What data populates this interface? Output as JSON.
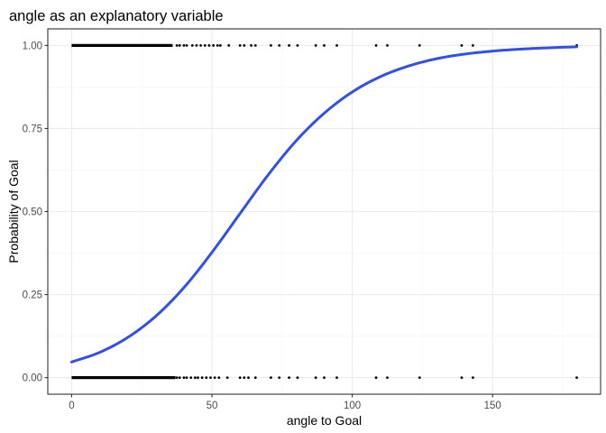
{
  "chart_data": {
    "type": "scatter",
    "title": "angle as an explanatory variable",
    "xlabel": "angle to Goal",
    "ylabel": "Probability of Goal",
    "xlim": [
      -8.5,
      188.5
    ],
    "ylim": [
      -0.05,
      1.05
    ],
    "x_ticks": [
      0,
      50,
      100,
      150
    ],
    "x_tick_labels": [
      "0",
      "50",
      "100",
      "150"
    ],
    "y_ticks": [
      0,
      0.25,
      0.5,
      0.75,
      1
    ],
    "y_tick_labels": [
      "0.00",
      "0.25",
      "0.50",
      "0.75",
      "1.00"
    ],
    "grid": true,
    "legend": "none",
    "series": [
      {
        "kind": "points",
        "color": "#000000",
        "dense_ranges": [
          {
            "y": 1,
            "from": 0,
            "to": 36
          },
          {
            "y": 0,
            "from": 0,
            "to": 37
          }
        ],
        "points_y1": [
          37.5,
          38.5,
          40,
          41,
          43,
          44.5,
          46,
          47.5,
          49,
          50.5,
          52,
          53,
          56,
          60,
          61.5,
          64,
          65.5,
          71,
          74,
          77.5,
          80.5,
          87,
          90,
          94.5,
          108.5,
          112.5,
          124,
          139,
          143,
          180
        ],
        "points_y0": [
          37.5,
          38.5,
          40,
          41,
          42.5,
          44,
          45,
          46.5,
          48,
          49.5,
          51,
          52.5,
          55.5,
          60,
          61.5,
          63,
          65.5,
          71,
          74,
          77.5,
          80.5,
          87,
          90,
          94.5,
          108.5,
          112.5,
          124,
          139,
          143,
          180
        ]
      },
      {
        "kind": "logistic-fit",
        "color": "#3050e8",
        "x": [
          0,
          10,
          20,
          30,
          40,
          50,
          60,
          70,
          80,
          90,
          100,
          110,
          120,
          130,
          140,
          150,
          160,
          170,
          180
        ],
        "y": [
          0.047,
          0.076,
          0.121,
          0.185,
          0.271,
          0.377,
          0.494,
          0.61,
          0.713,
          0.796,
          0.86,
          0.906,
          0.938,
          0.96,
          0.974,
          0.983,
          0.989,
          0.993,
          0.996
        ]
      }
    ]
  }
}
